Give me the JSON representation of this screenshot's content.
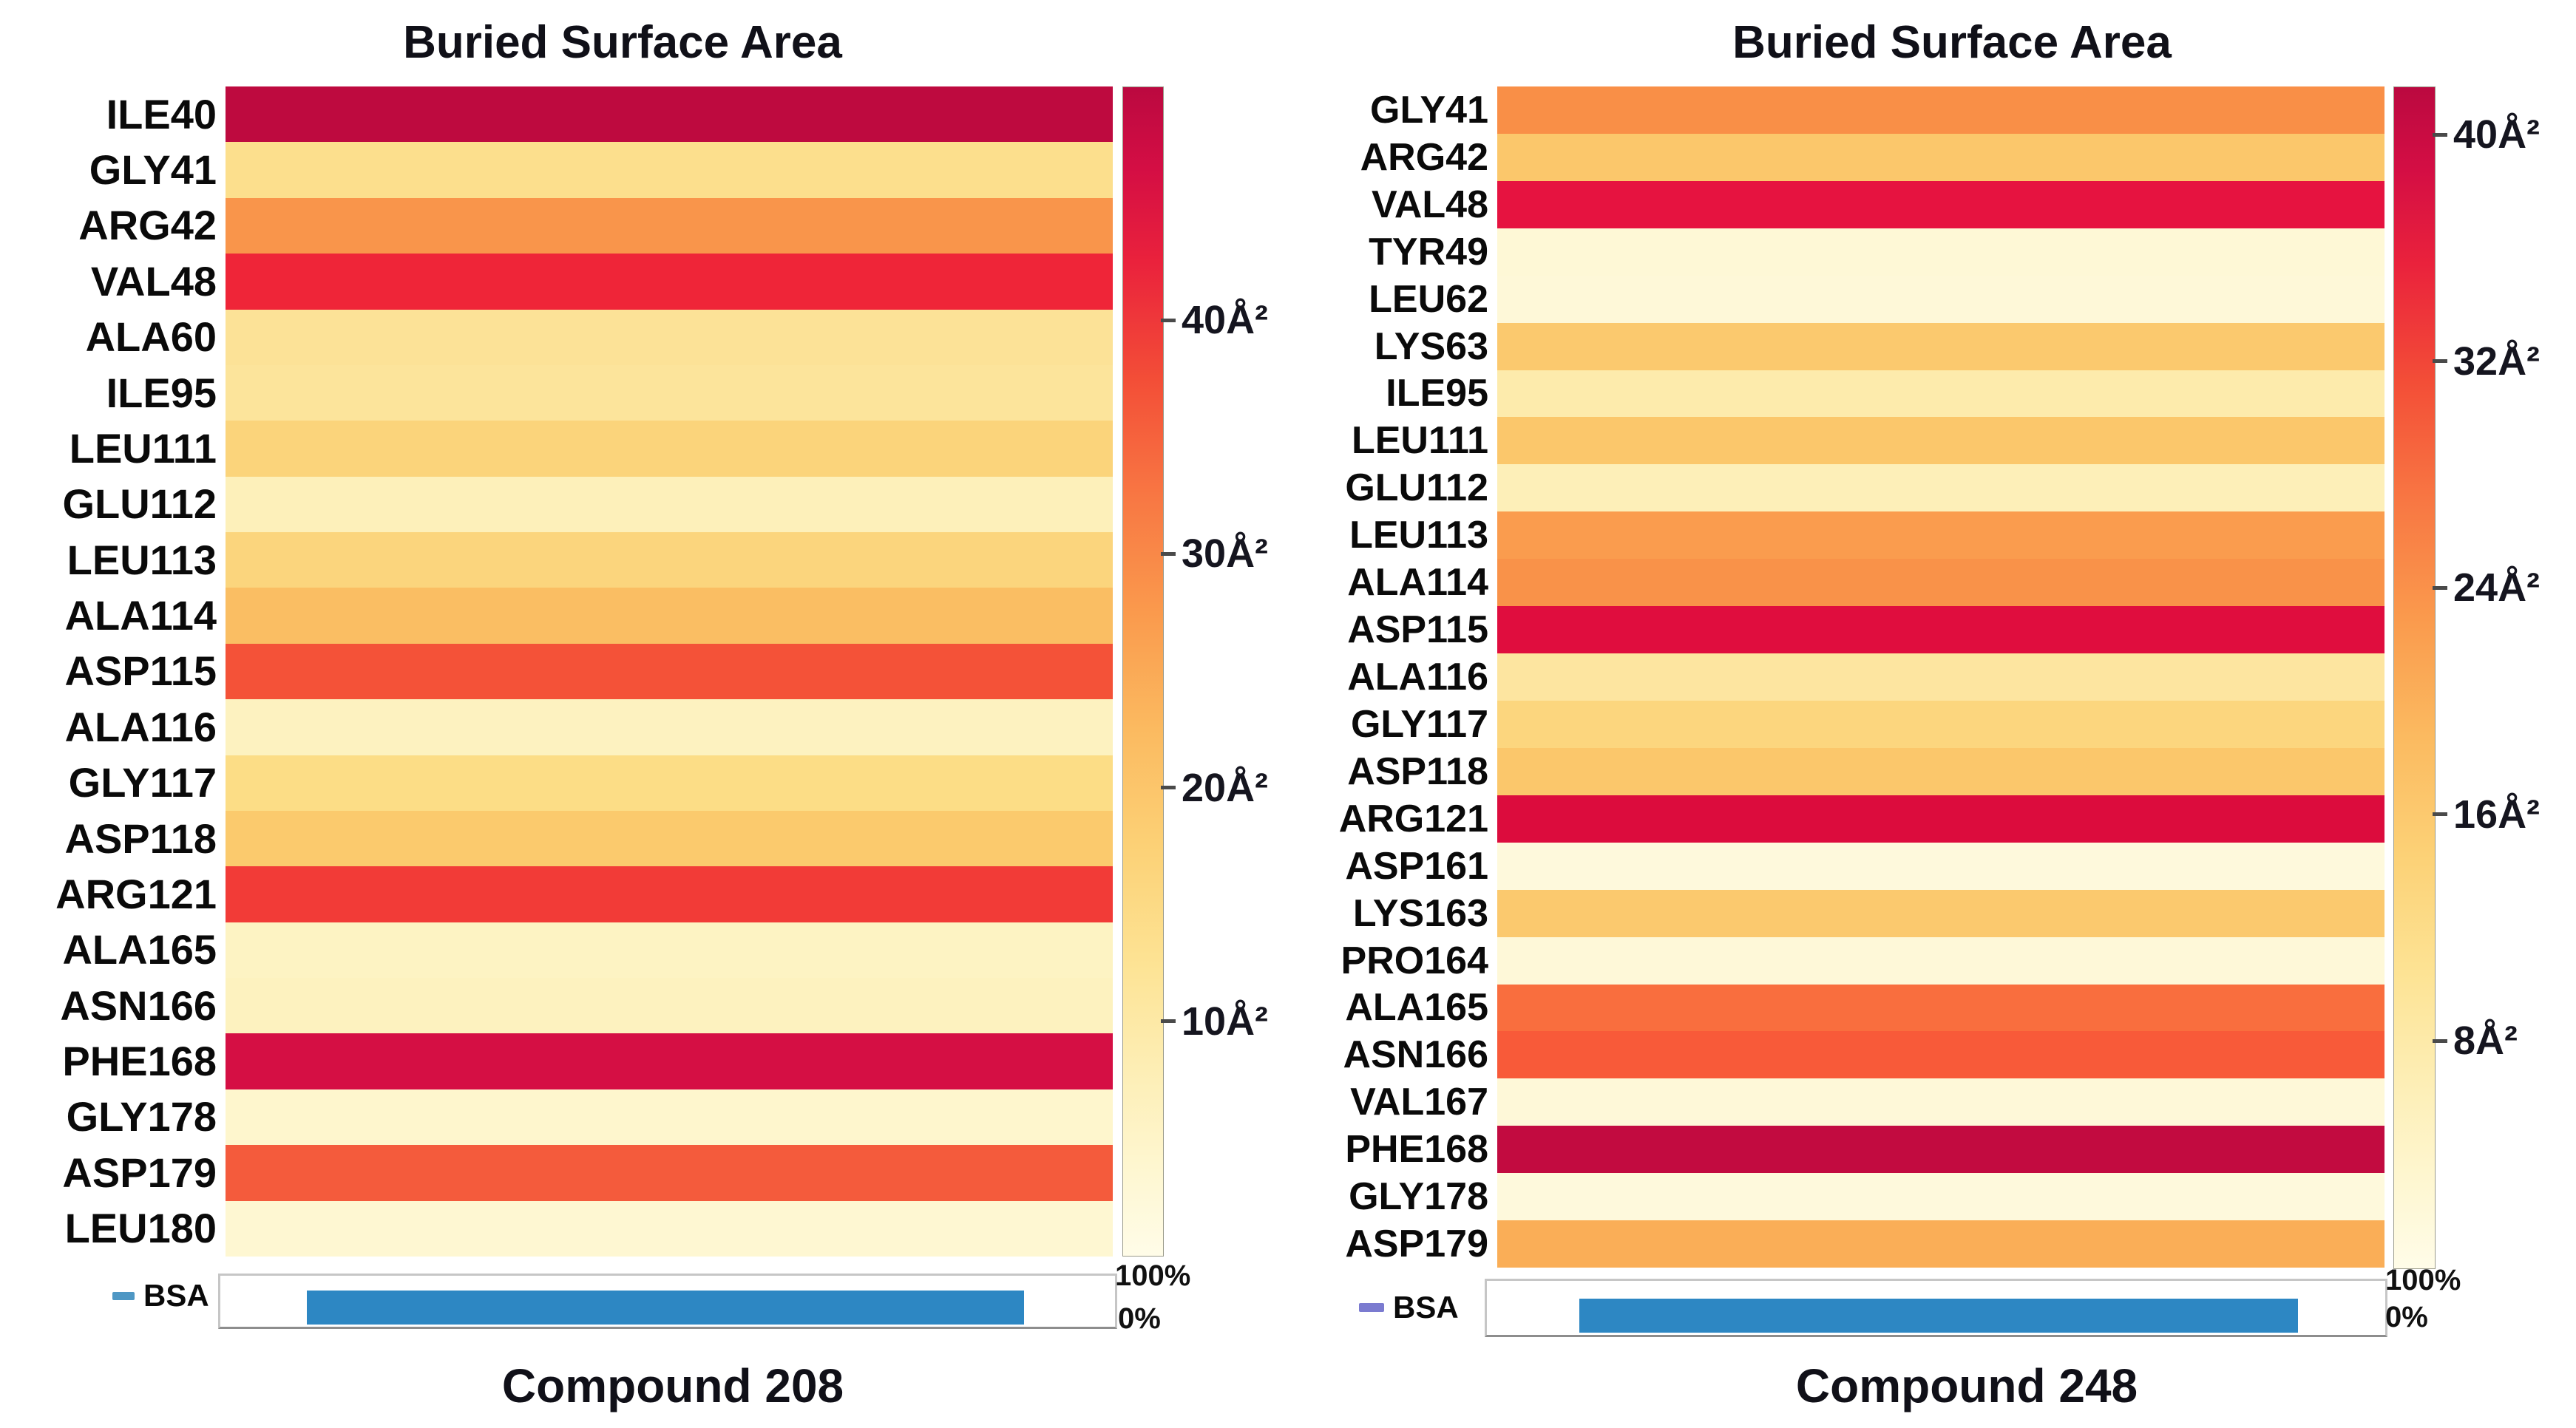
{
  "figure": {
    "background": "#ffffff",
    "bar_blue": "#2D87C3",
    "legend_dash_colors": [
      "#4E97C4",
      "#7B7BD0"
    ],
    "text_color": "#111111"
  },
  "chart_data": [
    {
      "type": "heatmap",
      "title": "Buried Surface Area",
      "xlabel": "Compound 208",
      "legend": "BSA",
      "colorbar": {
        "unit": "Å²",
        "scale_min": 0,
        "scale_max": 50,
        "ticks": [
          {
            "value": 40,
            "label": "40Å²"
          },
          {
            "value": 30,
            "label": "30Å²"
          },
          {
            "value": 20,
            "label": "20Å²"
          },
          {
            "value": 10,
            "label": "10Å²"
          }
        ]
      },
      "bsa_axis": {
        "top_label": "100%",
        "bottom_label": "0%",
        "bar_start_pct": 9.7,
        "bar_end_pct": 89.8
      },
      "rows": [
        {
          "residue": "ILE40",
          "bsa": 47,
          "color": "#BE0A3F"
        },
        {
          "residue": "GLY41",
          "bsa": 14,
          "color": "#FCDF8D"
        },
        {
          "residue": "ARG42",
          "bsa": 26,
          "color": "#F9954B"
        },
        {
          "residue": "VAL48",
          "bsa": 39,
          "color": "#EF2538"
        },
        {
          "residue": "ALA60",
          "bsa": 13,
          "color": "#FCE297"
        },
        {
          "residue": "ILE95",
          "bsa": 13,
          "color": "#FCE49B"
        },
        {
          "residue": "LEU111",
          "bsa": 16,
          "color": "#FBD47B"
        },
        {
          "residue": "GLU112",
          "bsa": 8,
          "color": "#FDF0BA"
        },
        {
          "residue": "LEU113",
          "bsa": 16,
          "color": "#FBD57D"
        },
        {
          "residue": "ALA114",
          "bsa": 21,
          "color": "#FABE63"
        },
        {
          "residue": "ASP115",
          "bsa": 35,
          "color": "#F45238"
        },
        {
          "residue": "ALA116",
          "bsa": 7,
          "color": "#FDF2C0"
        },
        {
          "residue": "GLY117",
          "bsa": 15,
          "color": "#FCDD86"
        },
        {
          "residue": "ASP118",
          "bsa": 18,
          "color": "#FBCA6D"
        },
        {
          "residue": "ARG121",
          "bsa": 37,
          "color": "#F23B37"
        },
        {
          "residue": "ALA165",
          "bsa": 7,
          "color": "#FDF3C3"
        },
        {
          "residue": "ASN166",
          "bsa": 7,
          "color": "#FDF2BF"
        },
        {
          "residue": "PHE168",
          "bsa": 44,
          "color": "#D50F44"
        },
        {
          "residue": "GLY178",
          "bsa": 5,
          "color": "#FEF6CD"
        },
        {
          "residue": "ASP179",
          "bsa": 34,
          "color": "#F45B3C"
        },
        {
          "residue": "LEU180",
          "bsa": 5,
          "color": "#FEF7D2"
        }
      ]
    },
    {
      "type": "heatmap",
      "title": "Buried Surface Area",
      "xlabel": "Compound 248",
      "legend": "BSA",
      "colorbar": {
        "unit": "Å²",
        "scale_min": 0,
        "scale_max": 41.7,
        "ticks": [
          {
            "value": 40,
            "label": "40Å²"
          },
          {
            "value": 32,
            "label": "32Å²"
          },
          {
            "value": 24,
            "label": "24Å²"
          },
          {
            "value": 16,
            "label": "16Å²"
          },
          {
            "value": 8,
            "label": "8Å²"
          }
        ]
      },
      "bsa_axis": {
        "top_label": "100%",
        "bottom_label": "0%",
        "bar_start_pct": 10.3,
        "bar_end_pct": 90.3
      },
      "rows": [
        {
          "residue": "GLY41",
          "bsa": 25,
          "color": "#F98F47"
        },
        {
          "residue": "ARG42",
          "bsa": 17,
          "color": "#FBC76B"
        },
        {
          "residue": "VAL48",
          "bsa": 38,
          "color": "#E61340"
        },
        {
          "residue": "TYR49",
          "bsa": 3,
          "color": "#FEF8D6"
        },
        {
          "residue": "LEU62",
          "bsa": 3,
          "color": "#FEF8D8"
        },
        {
          "residue": "LYS63",
          "bsa": 17,
          "color": "#FBC96E"
        },
        {
          "residue": "ILE95",
          "bsa": 9,
          "color": "#FDEBAC"
        },
        {
          "residue": "LEU111",
          "bsa": 17,
          "color": "#FBC76B"
        },
        {
          "residue": "GLU112",
          "bsa": 8,
          "color": "#FDEFB8"
        },
        {
          "residue": "LEU113",
          "bsa": 23,
          "color": "#FA9C4E"
        },
        {
          "residue": "ALA114",
          "bsa": 24,
          "color": "#F99249"
        },
        {
          "residue": "ASP115",
          "bsa": 39,
          "color": "#E00D3E"
        },
        {
          "residue": "ALA116",
          "bsa": 11,
          "color": "#FDE5A0"
        },
        {
          "residue": "GLY117",
          "bsa": 14,
          "color": "#FCD67E"
        },
        {
          "residue": "ASP118",
          "bsa": 17,
          "color": "#FBC76B"
        },
        {
          "residue": "ARG121",
          "bsa": 40,
          "color": "#DC0C3D"
        },
        {
          "residue": "ASP161",
          "bsa": 2,
          "color": "#FEF9DC"
        },
        {
          "residue": "LYS163",
          "bsa": 17,
          "color": "#FBC96E"
        },
        {
          "residue": "PRO164",
          "bsa": 2,
          "color": "#FEF8D8"
        },
        {
          "residue": "ALA165",
          "bsa": 29,
          "color": "#F96E3E"
        },
        {
          "residue": "ASN166",
          "bsa": 31,
          "color": "#F85A39"
        },
        {
          "residue": "VAL167",
          "bsa": 2,
          "color": "#FEF8D8"
        },
        {
          "residue": "PHE168",
          "bsa": 41,
          "color": "#C20B40"
        },
        {
          "residue": "GLY178",
          "bsa": 2,
          "color": "#FEF9DC"
        },
        {
          "residue": "ASP179",
          "bsa": 20,
          "color": "#FAAE57"
        }
      ]
    }
  ]
}
